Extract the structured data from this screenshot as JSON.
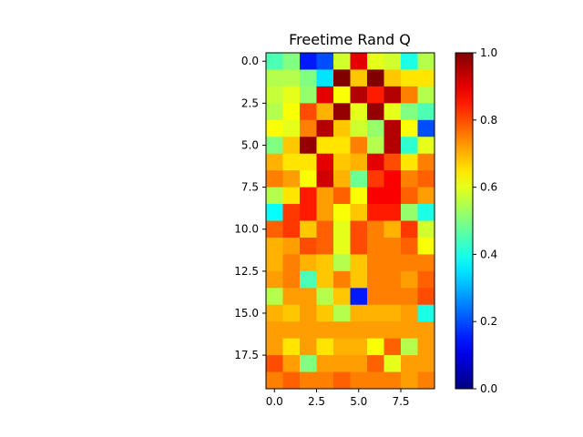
{
  "chart_data": {
    "type": "heatmap",
    "title": "Freetime Rand Q",
    "colormap": "jet",
    "x_ticks": [
      "0.0",
      "2.5",
      "5.0",
      "7.5"
    ],
    "x_tick_values": [
      0,
      2.5,
      5,
      7.5
    ],
    "y_ticks": [
      "0.0",
      "2.5",
      "5.0",
      "7.5",
      "10.0",
      "12.5",
      "15.0",
      "17.5"
    ],
    "y_tick_values": [
      0,
      2.5,
      5,
      7.5,
      10,
      12.5,
      15,
      17.5
    ],
    "colorbar_ticks": [
      "0.0",
      "0.2",
      "0.4",
      "0.6",
      "0.8",
      "1.0"
    ],
    "colorbar_tick_values": [
      0,
      0.2,
      0.4,
      0.6,
      0.8,
      1.0
    ],
    "vmin": 0,
    "vmax": 1,
    "x_range": [
      -0.5,
      9.5
    ],
    "y_range": [
      19.5,
      -0.5
    ],
    "values": [
      [
        0.45,
        0.5,
        0.15,
        0.2,
        0.58,
        0.9,
        0.6,
        0.58,
        0.4,
        0.55
      ],
      [
        0.55,
        0.55,
        0.5,
        0.35,
        1.0,
        0.68,
        1.0,
        0.68,
        0.65,
        0.65
      ],
      [
        0.57,
        0.6,
        0.52,
        0.9,
        0.62,
        0.95,
        0.85,
        0.95,
        0.75,
        0.55
      ],
      [
        0.55,
        0.62,
        0.8,
        0.7,
        0.98,
        0.6,
        0.98,
        0.6,
        0.5,
        0.45
      ],
      [
        0.62,
        0.6,
        0.75,
        0.95,
        0.68,
        0.58,
        0.52,
        0.95,
        0.62,
        0.2
      ],
      [
        0.5,
        0.68,
        0.98,
        0.65,
        0.65,
        0.75,
        0.55,
        0.95,
        0.42,
        0.6
      ],
      [
        0.7,
        0.65,
        0.65,
        0.9,
        0.68,
        0.7,
        0.9,
        0.8,
        0.65,
        0.75
      ],
      [
        0.75,
        0.72,
        0.62,
        0.92,
        0.7,
        0.48,
        0.82,
        0.88,
        0.75,
        0.78
      ],
      [
        0.55,
        0.65,
        0.85,
        0.72,
        0.78,
        0.62,
        0.88,
        0.88,
        0.78,
        0.72
      ],
      [
        0.38,
        0.82,
        0.85,
        0.72,
        0.62,
        0.68,
        0.85,
        0.85,
        0.52,
        0.4
      ],
      [
        0.78,
        0.82,
        0.68,
        0.78,
        0.6,
        0.8,
        0.75,
        0.7,
        0.82,
        0.58
      ],
      [
        0.7,
        0.72,
        0.8,
        0.78,
        0.6,
        0.8,
        0.75,
        0.75,
        0.78,
        0.62
      ],
      [
        0.7,
        0.75,
        0.7,
        0.68,
        0.55,
        0.68,
        0.75,
        0.75,
        0.75,
        0.75
      ],
      [
        0.72,
        0.75,
        0.45,
        0.68,
        0.75,
        0.68,
        0.75,
        0.75,
        0.72,
        0.78
      ],
      [
        0.55,
        0.72,
        0.72,
        0.55,
        0.68,
        0.15,
        0.75,
        0.75,
        0.75,
        0.8
      ],
      [
        0.7,
        0.68,
        0.72,
        0.68,
        0.55,
        0.7,
        0.7,
        0.7,
        0.72,
        0.4
      ],
      [
        0.72,
        0.72,
        0.72,
        0.72,
        0.72,
        0.72,
        0.72,
        0.72,
        0.72,
        0.72
      ],
      [
        0.72,
        0.65,
        0.72,
        0.65,
        0.7,
        0.7,
        0.62,
        0.78,
        0.55,
        0.72
      ],
      [
        0.8,
        0.72,
        0.5,
        0.72,
        0.72,
        0.72,
        0.78,
        0.6,
        0.72,
        0.72
      ],
      [
        0.75,
        0.78,
        0.75,
        0.75,
        0.78,
        0.75,
        0.75,
        0.75,
        0.72,
        0.75
      ]
    ]
  }
}
